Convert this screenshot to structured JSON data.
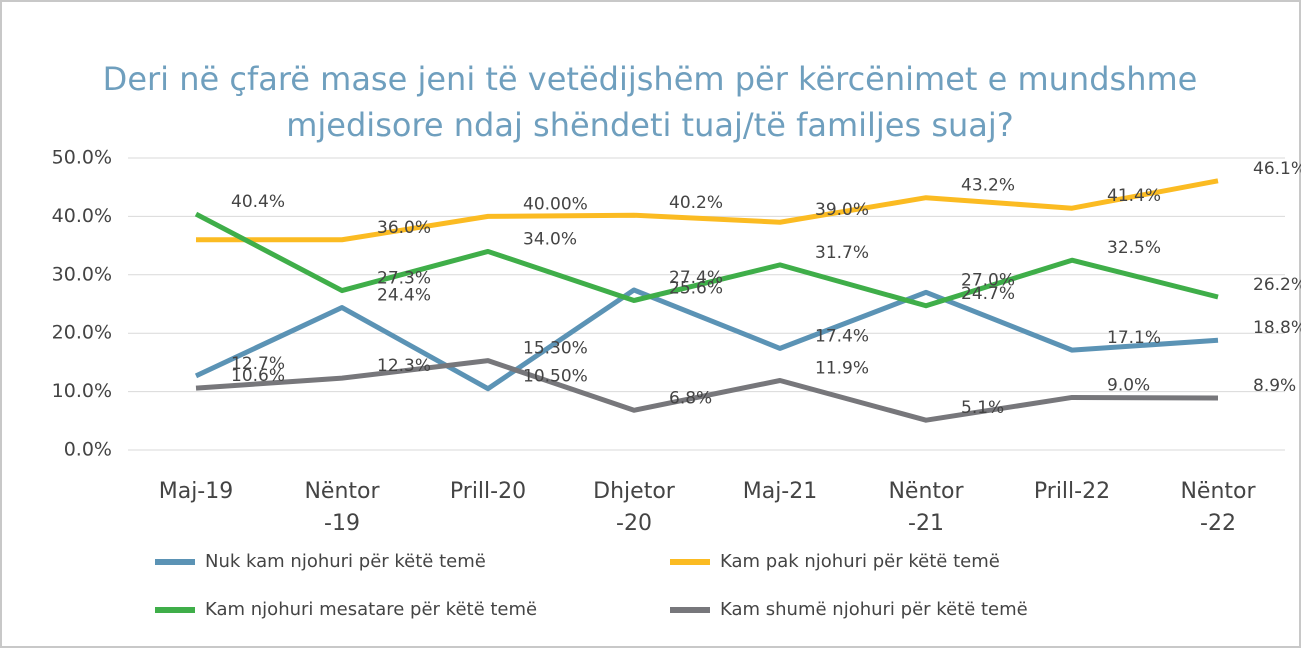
{
  "chart_data": {
    "type": "line",
    "title": "Deri në çfarë mase jeni të vetëdijshëm për kërcënimet e mundshme mjedisore ndaj shëndeti tuaj/të familjes suaj?",
    "categories": [
      "Maj-19",
      "Nëntor -19",
      "Prill-20",
      "Dhjetor -20",
      "Maj-21",
      "Nëntor -21",
      "Prill-22",
      "Nëntor -22"
    ],
    "ylim": [
      0,
      50
    ],
    "yticks": [
      {
        "value": 0,
        "label": "0.0%"
      },
      {
        "value": 10,
        "label": "10.0%"
      },
      {
        "value": 20,
        "label": "20.0%"
      },
      {
        "value": 30,
        "label": "30.0%"
      },
      {
        "value": 40,
        "label": "40.0%"
      },
      {
        "value": 50,
        "label": "50.0%"
      }
    ],
    "grid": true,
    "legend": "bottom",
    "series": [
      {
        "name": "Nuk kam njohuri për këtë temë",
        "color": "#5b93b5",
        "values": [
          12.7,
          24.4,
          10.5,
          27.4,
          17.4,
          27.0,
          17.1,
          18.8
        ],
        "value_labels": [
          "12.7%",
          "24.4%",
          "10.50%",
          "27.4%",
          "17.4%",
          "27.0%",
          "17.1%",
          "18.8%"
        ]
      },
      {
        "name": "Kam pak njohuri për këtë temë",
        "color": "#fbbb22",
        "values": [
          36.0,
          36.0,
          40.0,
          40.2,
          39.0,
          43.2,
          41.4,
          46.1
        ],
        "value_labels": [
          null,
          "36.0%",
          "40.00%",
          "40.2%",
          "39.0%",
          "43.2%",
          "41.4%",
          "46.1%"
        ]
      },
      {
        "name": "Kam njohuri mesatare për këtë temë",
        "color": "#3fae49",
        "values": [
          40.4,
          27.3,
          34.0,
          25.6,
          31.7,
          24.7,
          32.5,
          26.2
        ],
        "value_labels": [
          "40.4%",
          "27.3%",
          "34.0%",
          "25.6%",
          "31.7%",
          "24.7%",
          "32.5%",
          "26.2%"
        ]
      },
      {
        "name": "Kam shumë njohuri për këtë temë",
        "color": "#77777b",
        "values": [
          10.6,
          12.3,
          15.3,
          6.8,
          11.9,
          5.1,
          9.0,
          8.9
        ],
        "value_labels": [
          "10.6%",
          "12.3%",
          "15.30%",
          "6.8%",
          "11.9%",
          "5.1%",
          "9.0%",
          "8.9%"
        ]
      }
    ]
  }
}
